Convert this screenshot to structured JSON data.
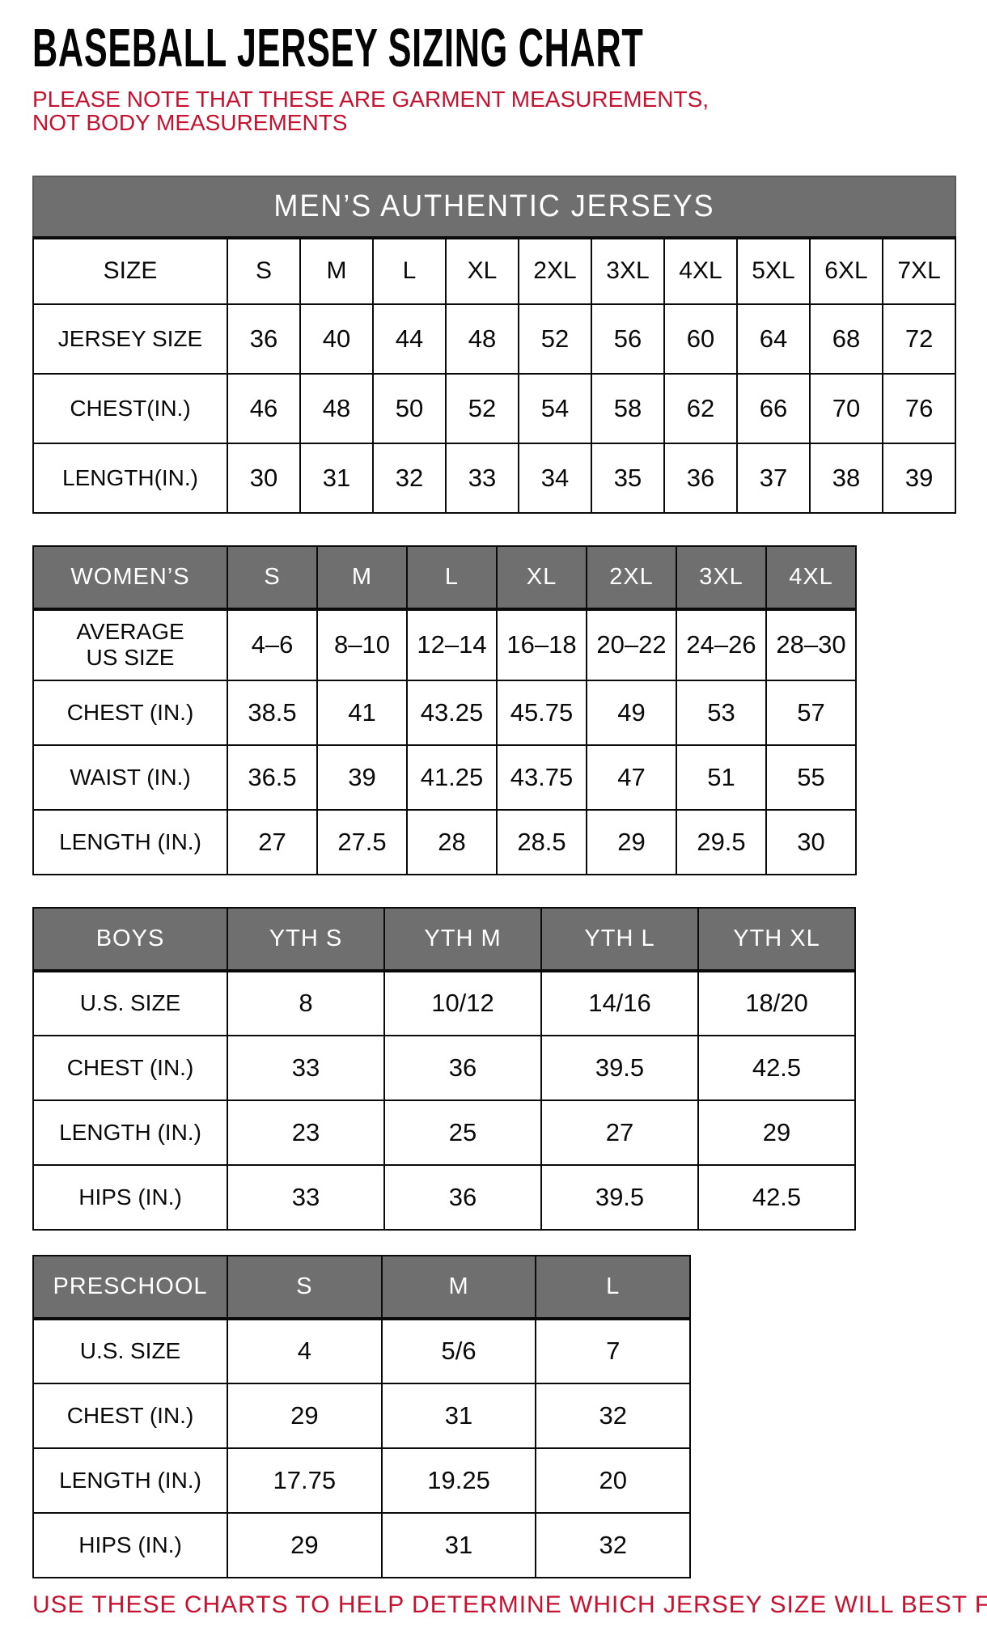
{
  "page": {
    "title": "BASEBALL JERSEY SIZING CHART",
    "note": "PLEASE NOTE THAT THESE ARE GARMENT MEASUREMENTS, NOT BODY MEASUREMENTS",
    "footer": "USE THESE CHARTS TO HELP DETERMINE WHICH JERSEY SIZE WILL BEST FIT YOU.",
    "colors": {
      "accent_red": "#c41230",
      "header_gray": "#6f6f6f",
      "border_black": "#0a0a0a",
      "header_text_white": "#ffffff"
    }
  },
  "tables": [
    {
      "name": "mens",
      "banner": "MEN’S AUTHENTIC JERSEYS",
      "size_row_label": "SIZE",
      "sizes": [
        "S",
        "M",
        "L",
        "XL",
        "2XL",
        "3XL",
        "4XL",
        "5XL",
        "6XL",
        "7XL"
      ],
      "rows": [
        {
          "label": "JERSEY SIZE",
          "values": [
            "36",
            "40",
            "44",
            "48",
            "52",
            "56",
            "60",
            "64",
            "68",
            "72"
          ]
        },
        {
          "label": "CHEST(IN.)",
          "values": [
            "46",
            "48",
            "50",
            "52",
            "54",
            "58",
            "62",
            "66",
            "70",
            "76"
          ]
        },
        {
          "label": "LENGTH(IN.)",
          "values": [
            "30",
            "31",
            "32",
            "33",
            "34",
            "35",
            "36",
            "37",
            "38",
            "39"
          ]
        }
      ]
    },
    {
      "name": "womens",
      "header_label": "WOMEN’S",
      "sizes": [
        "S",
        "M",
        "L",
        "XL",
        "2XL",
        "3XL",
        "4XL"
      ],
      "rows": [
        {
          "label": "AVERAGE\nUS SIZE",
          "tall": true,
          "values": [
            "4–6",
            "8–10",
            "12–14",
            "16–18",
            "20–22",
            "24–26",
            "28–30"
          ]
        },
        {
          "label": "CHEST (IN.)",
          "values": [
            "38.5",
            "41",
            "43.25",
            "45.75",
            "49",
            "53",
            "57"
          ]
        },
        {
          "label": "WAIST (IN.)",
          "values": [
            "36.5",
            "39",
            "41.25",
            "43.75",
            "47",
            "51",
            "55"
          ]
        },
        {
          "label": "LENGTH (IN.)",
          "values": [
            "27",
            "27.5",
            "28",
            "28.5",
            "29",
            "29.5",
            "30"
          ]
        }
      ]
    },
    {
      "name": "boys",
      "header_label": "BOYS",
      "sizes": [
        "YTH S",
        "YTH M",
        "YTH L",
        "YTH XL"
      ],
      "rows": [
        {
          "label": "U.S. SIZE",
          "values": [
            "8",
            "10/12",
            "14/16",
            "18/20"
          ]
        },
        {
          "label": "CHEST (IN.)",
          "values": [
            "33",
            "36",
            "39.5",
            "42.5"
          ]
        },
        {
          "label": "LENGTH (IN.)",
          "values": [
            "23",
            "25",
            "27",
            "29"
          ]
        },
        {
          "label": "HIPS (IN.)",
          "values": [
            "33",
            "36",
            "39.5",
            "42.5"
          ]
        }
      ]
    },
    {
      "name": "preschool",
      "header_label": "PRESCHOOL",
      "sizes": [
        "S",
        "M",
        "L"
      ],
      "rows": [
        {
          "label": "U.S. SIZE",
          "values": [
            "4",
            "5/6",
            "7"
          ]
        },
        {
          "label": "CHEST (IN.)",
          "values": [
            "29",
            "31",
            "32"
          ]
        },
        {
          "label": "LENGTH (IN.)",
          "values": [
            "17.75",
            "19.25",
            "20"
          ]
        },
        {
          "label": "HIPS (IN.)",
          "values": [
            "29",
            "31",
            "32"
          ]
        }
      ]
    }
  ]
}
